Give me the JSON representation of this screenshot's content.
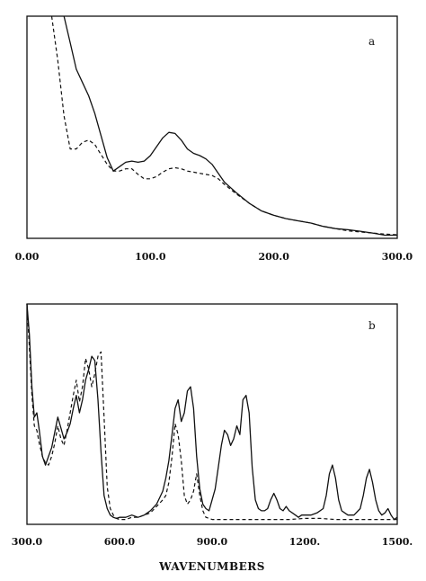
{
  "xlabel": "WAVENUMBERS",
  "chart_data": [
    {
      "type": "line",
      "panel_label": "a",
      "xlim": [
        0,
        300
      ],
      "x_ticks": [
        "0.00",
        "100.0",
        "200.0",
        "300.0"
      ],
      "y_axis_labeled": false,
      "series": [
        {
          "style": "solid",
          "x": [
            30,
            35,
            40,
            45,
            50,
            55,
            60,
            65,
            70,
            75,
            80,
            85,
            90,
            95,
            100,
            105,
            110,
            115,
            120,
            125,
            130,
            135,
            140,
            145,
            150,
            155,
            160,
            170,
            180,
            190,
            200,
            210,
            220,
            230,
            240,
            250,
            260,
            270,
            280,
            290,
            300
          ],
          "y": [
            1.0,
            0.88,
            0.76,
            0.7,
            0.64,
            0.56,
            0.46,
            0.36,
            0.3,
            0.32,
            0.34,
            0.345,
            0.34,
            0.345,
            0.37,
            0.41,
            0.45,
            0.475,
            0.47,
            0.44,
            0.4,
            0.38,
            0.37,
            0.355,
            0.33,
            0.29,
            0.25,
            0.2,
            0.155,
            0.12,
            0.1,
            0.085,
            0.075,
            0.065,
            0.05,
            0.04,
            0.035,
            0.028,
            0.02,
            0.01,
            0.01
          ]
        },
        {
          "style": "dashed",
          "x": [
            20,
            25,
            30,
            35,
            40,
            45,
            50,
            55,
            60,
            65,
            70,
            75,
            80,
            85,
            90,
            95,
            100,
            105,
            110,
            115,
            120,
            125,
            130,
            135,
            140,
            145,
            150,
            155,
            160,
            170,
            180,
            190,
            200,
            210,
            220,
            230,
            240,
            250,
            260,
            270,
            280,
            290,
            300
          ],
          "y": [
            1.0,
            0.8,
            0.55,
            0.4,
            0.4,
            0.43,
            0.44,
            0.42,
            0.375,
            0.33,
            0.3,
            0.3,
            0.31,
            0.31,
            0.285,
            0.265,
            0.265,
            0.275,
            0.295,
            0.31,
            0.315,
            0.31,
            0.3,
            0.295,
            0.29,
            0.285,
            0.28,
            0.265,
            0.24,
            0.195,
            0.155,
            0.12,
            0.1,
            0.085,
            0.075,
            0.065,
            0.05,
            0.04,
            0.03,
            0.025,
            0.02,
            0.015,
            0.012
          ]
        }
      ]
    },
    {
      "type": "line",
      "panel_label": "b",
      "xlim": [
        300,
        1500
      ],
      "x_ticks": [
        "300.0",
        "600.0",
        "900.0",
        "1200.",
        "1500."
      ],
      "y_axis_labeled": false,
      "series": [
        {
          "style": "solid",
          "x": [
            300,
            308,
            316,
            324,
            332,
            340,
            350,
            360,
            370,
            380,
            390,
            400,
            410,
            420,
            430,
            440,
            450,
            460,
            470,
            480,
            490,
            500,
            510,
            520,
            530,
            540,
            550,
            560,
            570,
            580,
            590,
            600,
            620,
            640,
            660,
            680,
            700,
            720,
            740,
            750,
            760,
            770,
            780,
            790,
            800,
            810,
            820,
            830,
            840,
            850,
            860,
            870,
            880,
            890,
            900,
            910,
            920,
            930,
            940,
            950,
            960,
            970,
            980,
            990,
            1000,
            1010,
            1020,
            1030,
            1040,
            1050,
            1060,
            1070,
            1080,
            1090,
            1100,
            1110,
            1120,
            1130,
            1140,
            1150,
            1160,
            1170,
            1180,
            1190,
            1200,
            1220,
            1240,
            1260,
            1270,
            1280,
            1290,
            1300,
            1310,
            1320,
            1330,
            1340,
            1360,
            1380,
            1390,
            1400,
            1410,
            1420,
            1430,
            1440,
            1450,
            1460,
            1470,
            1480,
            1490,
            1500
          ],
          "y": [
            1.0,
            0.86,
            0.62,
            0.48,
            0.5,
            0.42,
            0.3,
            0.26,
            0.3,
            0.34,
            0.41,
            0.48,
            0.43,
            0.38,
            0.41,
            0.45,
            0.52,
            0.58,
            0.5,
            0.56,
            0.65,
            0.7,
            0.76,
            0.74,
            0.56,
            0.32,
            0.12,
            0.06,
            0.03,
            0.02,
            0.015,
            0.02,
            0.02,
            0.03,
            0.02,
            0.03,
            0.05,
            0.08,
            0.14,
            0.2,
            0.28,
            0.4,
            0.52,
            0.56,
            0.46,
            0.5,
            0.6,
            0.62,
            0.52,
            0.3,
            0.15,
            0.08,
            0.06,
            0.05,
            0.1,
            0.15,
            0.25,
            0.35,
            0.42,
            0.4,
            0.35,
            0.38,
            0.44,
            0.4,
            0.56,
            0.58,
            0.5,
            0.25,
            0.1,
            0.06,
            0.05,
            0.05,
            0.06,
            0.1,
            0.13,
            0.1,
            0.06,
            0.05,
            0.07,
            0.05,
            0.04,
            0.03,
            0.02,
            0.03,
            0.03,
            0.03,
            0.04,
            0.06,
            0.12,
            0.22,
            0.26,
            0.2,
            0.1,
            0.05,
            0.04,
            0.03,
            0.03,
            0.06,
            0.12,
            0.2,
            0.24,
            0.18,
            0.1,
            0.05,
            0.03,
            0.04,
            0.06,
            0.03,
            0.01,
            0.02
          ]
        },
        {
          "style": "dashed",
          "x": [
            300,
            308,
            316,
            324,
            332,
            340,
            350,
            360,
            370,
            380,
            390,
            400,
            410,
            420,
            430,
            440,
            450,
            460,
            470,
            480,
            490,
            500,
            510,
            520,
            530,
            540,
            550,
            560,
            570,
            580,
            590,
            600,
            620,
            640,
            660,
            680,
            700,
            720,
            740,
            750,
            760,
            770,
            780,
            790,
            800,
            810,
            820,
            830,
            840,
            850,
            860,
            870,
            880,
            900,
            950,
            1000,
            1050,
            1100,
            1150,
            1200,
            1250,
            1300,
            1350,
            1400,
            1450,
            1500
          ],
          "y": [
            1.0,
            0.8,
            0.58,
            0.44,
            0.42,
            0.36,
            0.3,
            0.27,
            0.26,
            0.3,
            0.36,
            0.44,
            0.38,
            0.35,
            0.42,
            0.5,
            0.58,
            0.65,
            0.55,
            0.62,
            0.75,
            0.7,
            0.62,
            0.68,
            0.76,
            0.78,
            0.48,
            0.16,
            0.06,
            0.03,
            0.015,
            0.01,
            0.01,
            0.02,
            0.02,
            0.03,
            0.04,
            0.07,
            0.1,
            0.12,
            0.18,
            0.3,
            0.45,
            0.4,
            0.28,
            0.12,
            0.08,
            0.1,
            0.14,
            0.22,
            0.12,
            0.05,
            0.02,
            0.01,
            0.01,
            0.01,
            0.01,
            0.01,
            0.01,
            0.015,
            0.015,
            0.01,
            0.01,
            0.01,
            0.01,
            0.01
          ]
        }
      ]
    }
  ]
}
